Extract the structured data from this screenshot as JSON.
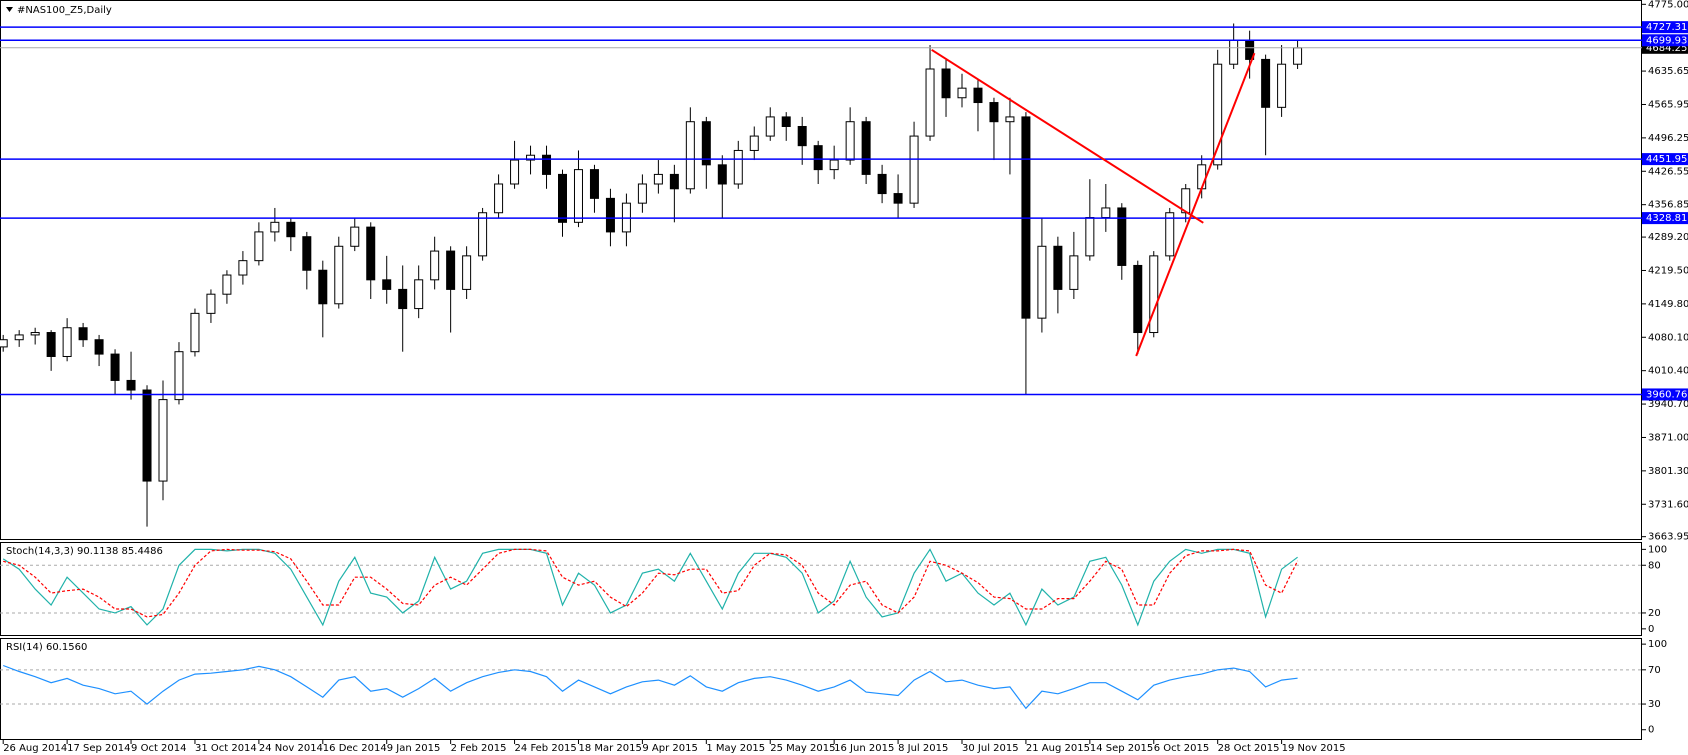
{
  "chart_data": [
    {
      "type": "candlestick",
      "title": "#NAS100_Z5,Daily",
      "categories": [
        "26 Aug 2014",
        null,
        null,
        null,
        "17 Sep 2014",
        null,
        null,
        null,
        "9 Oct 2014",
        null,
        null,
        null,
        "31 Oct 2014",
        null,
        null,
        null,
        "24 Nov 2014",
        null,
        null,
        null,
        "16 Dec 2014",
        null,
        null,
        null,
        "9 Jan 2015",
        null,
        null,
        null,
        "2 Feb 2015",
        null,
        null,
        null,
        "24 Feb 2015",
        null,
        null,
        null,
        "18 Mar 2015",
        null,
        null,
        null,
        "9 Apr 2015",
        null,
        null,
        null,
        "1 May 2015",
        null,
        null,
        null,
        "25 May 2015",
        null,
        null,
        null,
        "16 Jun 2015",
        null,
        null,
        null,
        "8 Jul 2015",
        null,
        null,
        null,
        "30 Jul 2015",
        null,
        null,
        null,
        "21 Aug 2015",
        null,
        null,
        null,
        "14 Sep 2015",
        null,
        null,
        null,
        "6 Oct 2015",
        null,
        null,
        null,
        "28 Oct 2015",
        null,
        null,
        null,
        "19 Nov 2015",
        null
      ],
      "open": [
        4060,
        4075,
        4085,
        4090,
        4040,
        4100,
        4075,
        4045,
        3990,
        3970,
        3780,
        3950,
        4050,
        4130,
        4170,
        4210,
        4240,
        4300,
        4320,
        4290,
        4220,
        4150,
        4270,
        4310,
        4200,
        4180,
        4140,
        4200,
        4260,
        4180,
        4250,
        4340,
        4400,
        4450,
        4460,
        4420,
        4320,
        4430,
        4370,
        4300,
        4360,
        4400,
        4420,
        4390,
        4530,
        4440,
        4400,
        4470,
        4500,
        4540,
        4520,
        4480,
        4430,
        4450,
        4530,
        4420,
        4380,
        4360,
        4500,
        4640,
        4580,
        4600,
        4570,
        4530,
        4540,
        4120,
        4270,
        4180,
        4250,
        4330,
        4350,
        4230,
        4090,
        4250,
        4340,
        4390,
        4440,
        4650,
        4700,
        4660,
        4560,
        4650
      ],
      "high": [
        4085,
        4095,
        4100,
        4095,
        4120,
        4110,
        4085,
        4055,
        4050,
        3980,
        3990,
        4070,
        4140,
        4180,
        4220,
        4260,
        4320,
        4350,
        4330,
        4300,
        4240,
        4290,
        4330,
        4320,
        4250,
        4230,
        4230,
        4290,
        4270,
        4270,
        4350,
        4420,
        4490,
        4480,
        4480,
        4430,
        4470,
        4440,
        4390,
        4380,
        4420,
        4450,
        4440,
        4560,
        4540,
        4460,
        4490,
        4520,
        4560,
        4550,
        4540,
        4490,
        4480,
        4560,
        4540,
        4440,
        4420,
        4530,
        4690,
        4660,
        4630,
        4620,
        4580,
        4580,
        4550,
        4330,
        4290,
        4300,
        4410,
        4400,
        4360,
        4240,
        4260,
        4350,
        4400,
        4460,
        4680,
        4735,
        4720,
        4670,
        4690,
        4700
      ],
      "low": [
        4050,
        4060,
        4065,
        4010,
        4030,
        4060,
        4020,
        3960,
        3950,
        3685,
        3740,
        3940,
        4040,
        4110,
        4150,
        4190,
        4230,
        4280,
        4260,
        4180,
        4080,
        4140,
        4260,
        4160,
        4150,
        4050,
        4120,
        4180,
        4090,
        4160,
        4240,
        4330,
        4390,
        4420,
        4390,
        4290,
        4310,
        4340,
        4270,
        4270,
        4340,
        4380,
        4320,
        4380,
        4390,
        4330,
        4390,
        4450,
        4490,
        4490,
        4440,
        4400,
        4410,
        4440,
        4400,
        4360,
        4330,
        4350,
        4490,
        4540,
        4560,
        4510,
        4450,
        4420,
        3960,
        4090,
        4130,
        4160,
        4240,
        4300,
        4200,
        4045,
        4080,
        4240,
        4320,
        4370,
        4430,
        4640,
        4620,
        4460,
        4540,
        4640
      ],
      "close": [
        4075,
        4085,
        4090,
        4040,
        4100,
        4075,
        4045,
        3990,
        3970,
        3780,
        3950,
        4050,
        4130,
        4170,
        4210,
        4240,
        4300,
        4320,
        4290,
        4220,
        4150,
        4270,
        4310,
        4200,
        4180,
        4140,
        4200,
        4260,
        4180,
        4250,
        4340,
        4400,
        4450,
        4460,
        4420,
        4320,
        4430,
        4370,
        4300,
        4360,
        4400,
        4420,
        4390,
        4530,
        4440,
        4400,
        4470,
        4500,
        4540,
        4520,
        4480,
        4430,
        4450,
        4530,
        4420,
        4380,
        4360,
        4500,
        4640,
        4580,
        4600,
        4570,
        4530,
        4540,
        4120,
        4270,
        4180,
        4250,
        4330,
        4350,
        4230,
        4090,
        4250,
        4340,
        4390,
        4440,
        4650,
        4700,
        4660,
        4560,
        4650,
        4684.25
      ],
      "up_color": "#ffffff",
      "down_color": "#000000",
      "wick_color": "#000000",
      "ylim": [
        3657,
        4784
      ],
      "yticks": [
        {
          "value": 4775,
          "label": "4775.00"
        },
        {
          "value": 4635.65,
          "label": "4635.65"
        },
        {
          "value": 4565.95,
          "label": "4565.95"
        },
        {
          "value": 4496.25,
          "label": "4496.25"
        },
        {
          "value": 4426.55,
          "label": "4426.55"
        },
        {
          "value": 4356.85,
          "label": "4356.85"
        },
        {
          "value": 4289.2,
          "label": "4289.20"
        },
        {
          "value": 4219.5,
          "label": "4219.50"
        },
        {
          "value": 4149.8,
          "label": "4149.80"
        },
        {
          "value": 4080.1,
          "label": "4080.10"
        },
        {
          "value": 4010.4,
          "label": "4010.40"
        },
        {
          "value": 3940.7,
          "label": "3940.70"
        },
        {
          "value": 3871,
          "label": "3871.00"
        },
        {
          "value": 3801.3,
          "label": "3801.30"
        },
        {
          "value": 3731.6,
          "label": "3731.60"
        },
        {
          "value": 3663.95,
          "label": "3663.95"
        }
      ],
      "hlines": [
        4727.31,
        4699.93,
        4451.95,
        4328.81,
        3960.76
      ],
      "hline_color": "#0000ff",
      "last_price_color": "#000000",
      "trendlines": [
        {
          "x": [
            58.1,
            75.1
          ],
          "y": [
            4680,
            4319
          ]
        },
        {
          "x": [
            70.9,
            78.3
          ],
          "y": [
            4041,
            4673
          ]
        }
      ],
      "trendline_color": "#ff0000"
    },
    {
      "type": "line",
      "title": "Stoch(14,3,3) 90.1138 85.4486",
      "series": [
        {
          "color": "#20b2aa",
          "style": "solid",
          "values": [
            88,
            75,
            50,
            30,
            65,
            45,
            25,
            20,
            28,
            5,
            25,
            80,
            100,
            100,
            98,
            100,
            100,
            95,
            75,
            40,
            5,
            60,
            90,
            45,
            40,
            20,
            35,
            90,
            50,
            60,
            95,
            100,
            100,
            100,
            95,
            30,
            70,
            55,
            20,
            30,
            70,
            75,
            60,
            95,
            60,
            25,
            70,
            95,
            95,
            90,
            70,
            20,
            35,
            85,
            40,
            15,
            20,
            70,
            100,
            60,
            70,
            45,
            30,
            45,
            5,
            50,
            30,
            40,
            85,
            90,
            55,
            5,
            60,
            85,
            100,
            95,
            100,
            100,
            95,
            15,
            75,
            90.1138
          ]
        },
        {
          "color": "#ff0000",
          "style": "dashed",
          "values": [
            85,
            80,
            65,
            45,
            48,
            50,
            40,
            25,
            25,
            15,
            18,
            45,
            80,
            98,
            100,
            99,
            99,
            97,
            88,
            60,
            30,
            30,
            65,
            65,
            50,
            32,
            30,
            55,
            65,
            55,
            75,
            95,
            100,
            100,
            98,
            65,
            55,
            60,
            40,
            28,
            45,
            70,
            68,
            75,
            75,
            45,
            48,
            80,
            95,
            93,
            80,
            45,
            30,
            55,
            60,
            30,
            20,
            40,
            85,
            80,
            70,
            58,
            40,
            38,
            25,
            25,
            38,
            38,
            60,
            85,
            75,
            30,
            30,
            70,
            92,
            98,
            98,
            100,
            98,
            55,
            45,
            85.4486
          ]
        }
      ],
      "ylim": [
        -9,
        108
      ],
      "yticks": [
        100,
        80,
        20,
        0
      ],
      "levels": [
        80,
        20
      ]
    },
    {
      "type": "line",
      "title": "RSI(14) 60.1560",
      "series": [
        {
          "color": "#1e90ff",
          "style": "solid",
          "values": [
            75,
            68,
            62,
            55,
            60,
            52,
            48,
            42,
            45,
            30,
            45,
            58,
            65,
            66,
            68,
            70,
            74,
            70,
            62,
            50,
            38,
            58,
            62,
            45,
            48,
            38,
            48,
            60,
            45,
            55,
            62,
            67,
            70,
            68,
            62,
            45,
            58,
            50,
            42,
            50,
            56,
            58,
            52,
            63,
            50,
            45,
            55,
            60,
            62,
            58,
            52,
            45,
            50,
            58,
            44,
            42,
            40,
            58,
            68,
            56,
            58,
            52,
            48,
            50,
            25,
            45,
            42,
            48,
            55,
            55,
            45,
            35,
            52,
            58,
            62,
            65,
            70,
            72,
            68,
            50,
            58,
            60.156
          ]
        }
      ],
      "ylim": [
        -12,
        106
      ],
      "yticks": [
        100,
        70,
        30,
        0
      ],
      "levels": [
        70,
        30
      ]
    }
  ]
}
